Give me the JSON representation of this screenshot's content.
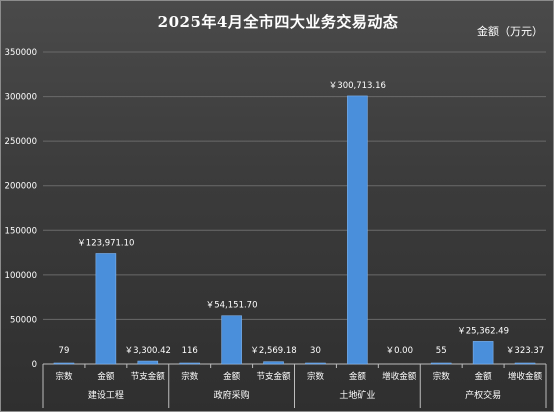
{
  "title": "2025年4月全市四大业务交易动态",
  "unit_label": "金额（万元）",
  "colors": {
    "background": "#3b3b3b",
    "bar": "#4a8fdb",
    "bar_edge": "#7fb3ee",
    "gridline": "#6a6a6a",
    "text": "#ffffff"
  },
  "chart_data": {
    "type": "bar",
    "title": "2025年4月全市四大业务交易动态",
    "ylabel": "金额（万元）",
    "ylim": [
      0,
      350000
    ],
    "yticks": [
      "0",
      "50000",
      "100000",
      "150000",
      "200000",
      "250000",
      "300000",
      "350000"
    ],
    "ytick_values": [
      0,
      50000,
      100000,
      150000,
      200000,
      250000,
      300000,
      350000
    ],
    "grid": true,
    "legend": "none",
    "groups": [
      {
        "name": "建设工程",
        "items": [
          {
            "category": "宗数",
            "value": 79,
            "label": "79"
          },
          {
            "category": "金额",
            "value": 123971.1,
            "label": "￥123,971.10"
          },
          {
            "category": "节支金额",
            "value": 3300.42,
            "label": "￥3,300.42"
          }
        ]
      },
      {
        "name": "政府采购",
        "items": [
          {
            "category": "宗数",
            "value": 116,
            "label": "116"
          },
          {
            "category": "金额",
            "value": 54151.7,
            "label": "￥54,151.70"
          },
          {
            "category": "节支金额",
            "value": 2569.18,
            "label": "￥2,569.18"
          }
        ]
      },
      {
        "name": "土地矿业",
        "items": [
          {
            "category": "宗数",
            "value": 30,
            "label": "30"
          },
          {
            "category": "金额",
            "value": 300713.16,
            "label": "￥300,713.16"
          },
          {
            "category": "增收金额",
            "value": 0.0,
            "label": "￥0.00"
          }
        ]
      },
      {
        "name": "产权交易",
        "items": [
          {
            "category": "宗数",
            "value": 55,
            "label": "55"
          },
          {
            "category": "金额",
            "value": 25362.49,
            "label": "￥25,362.49"
          },
          {
            "category": "增收金额",
            "value": 323.37,
            "label": "￥323.37"
          }
        ]
      }
    ]
  }
}
